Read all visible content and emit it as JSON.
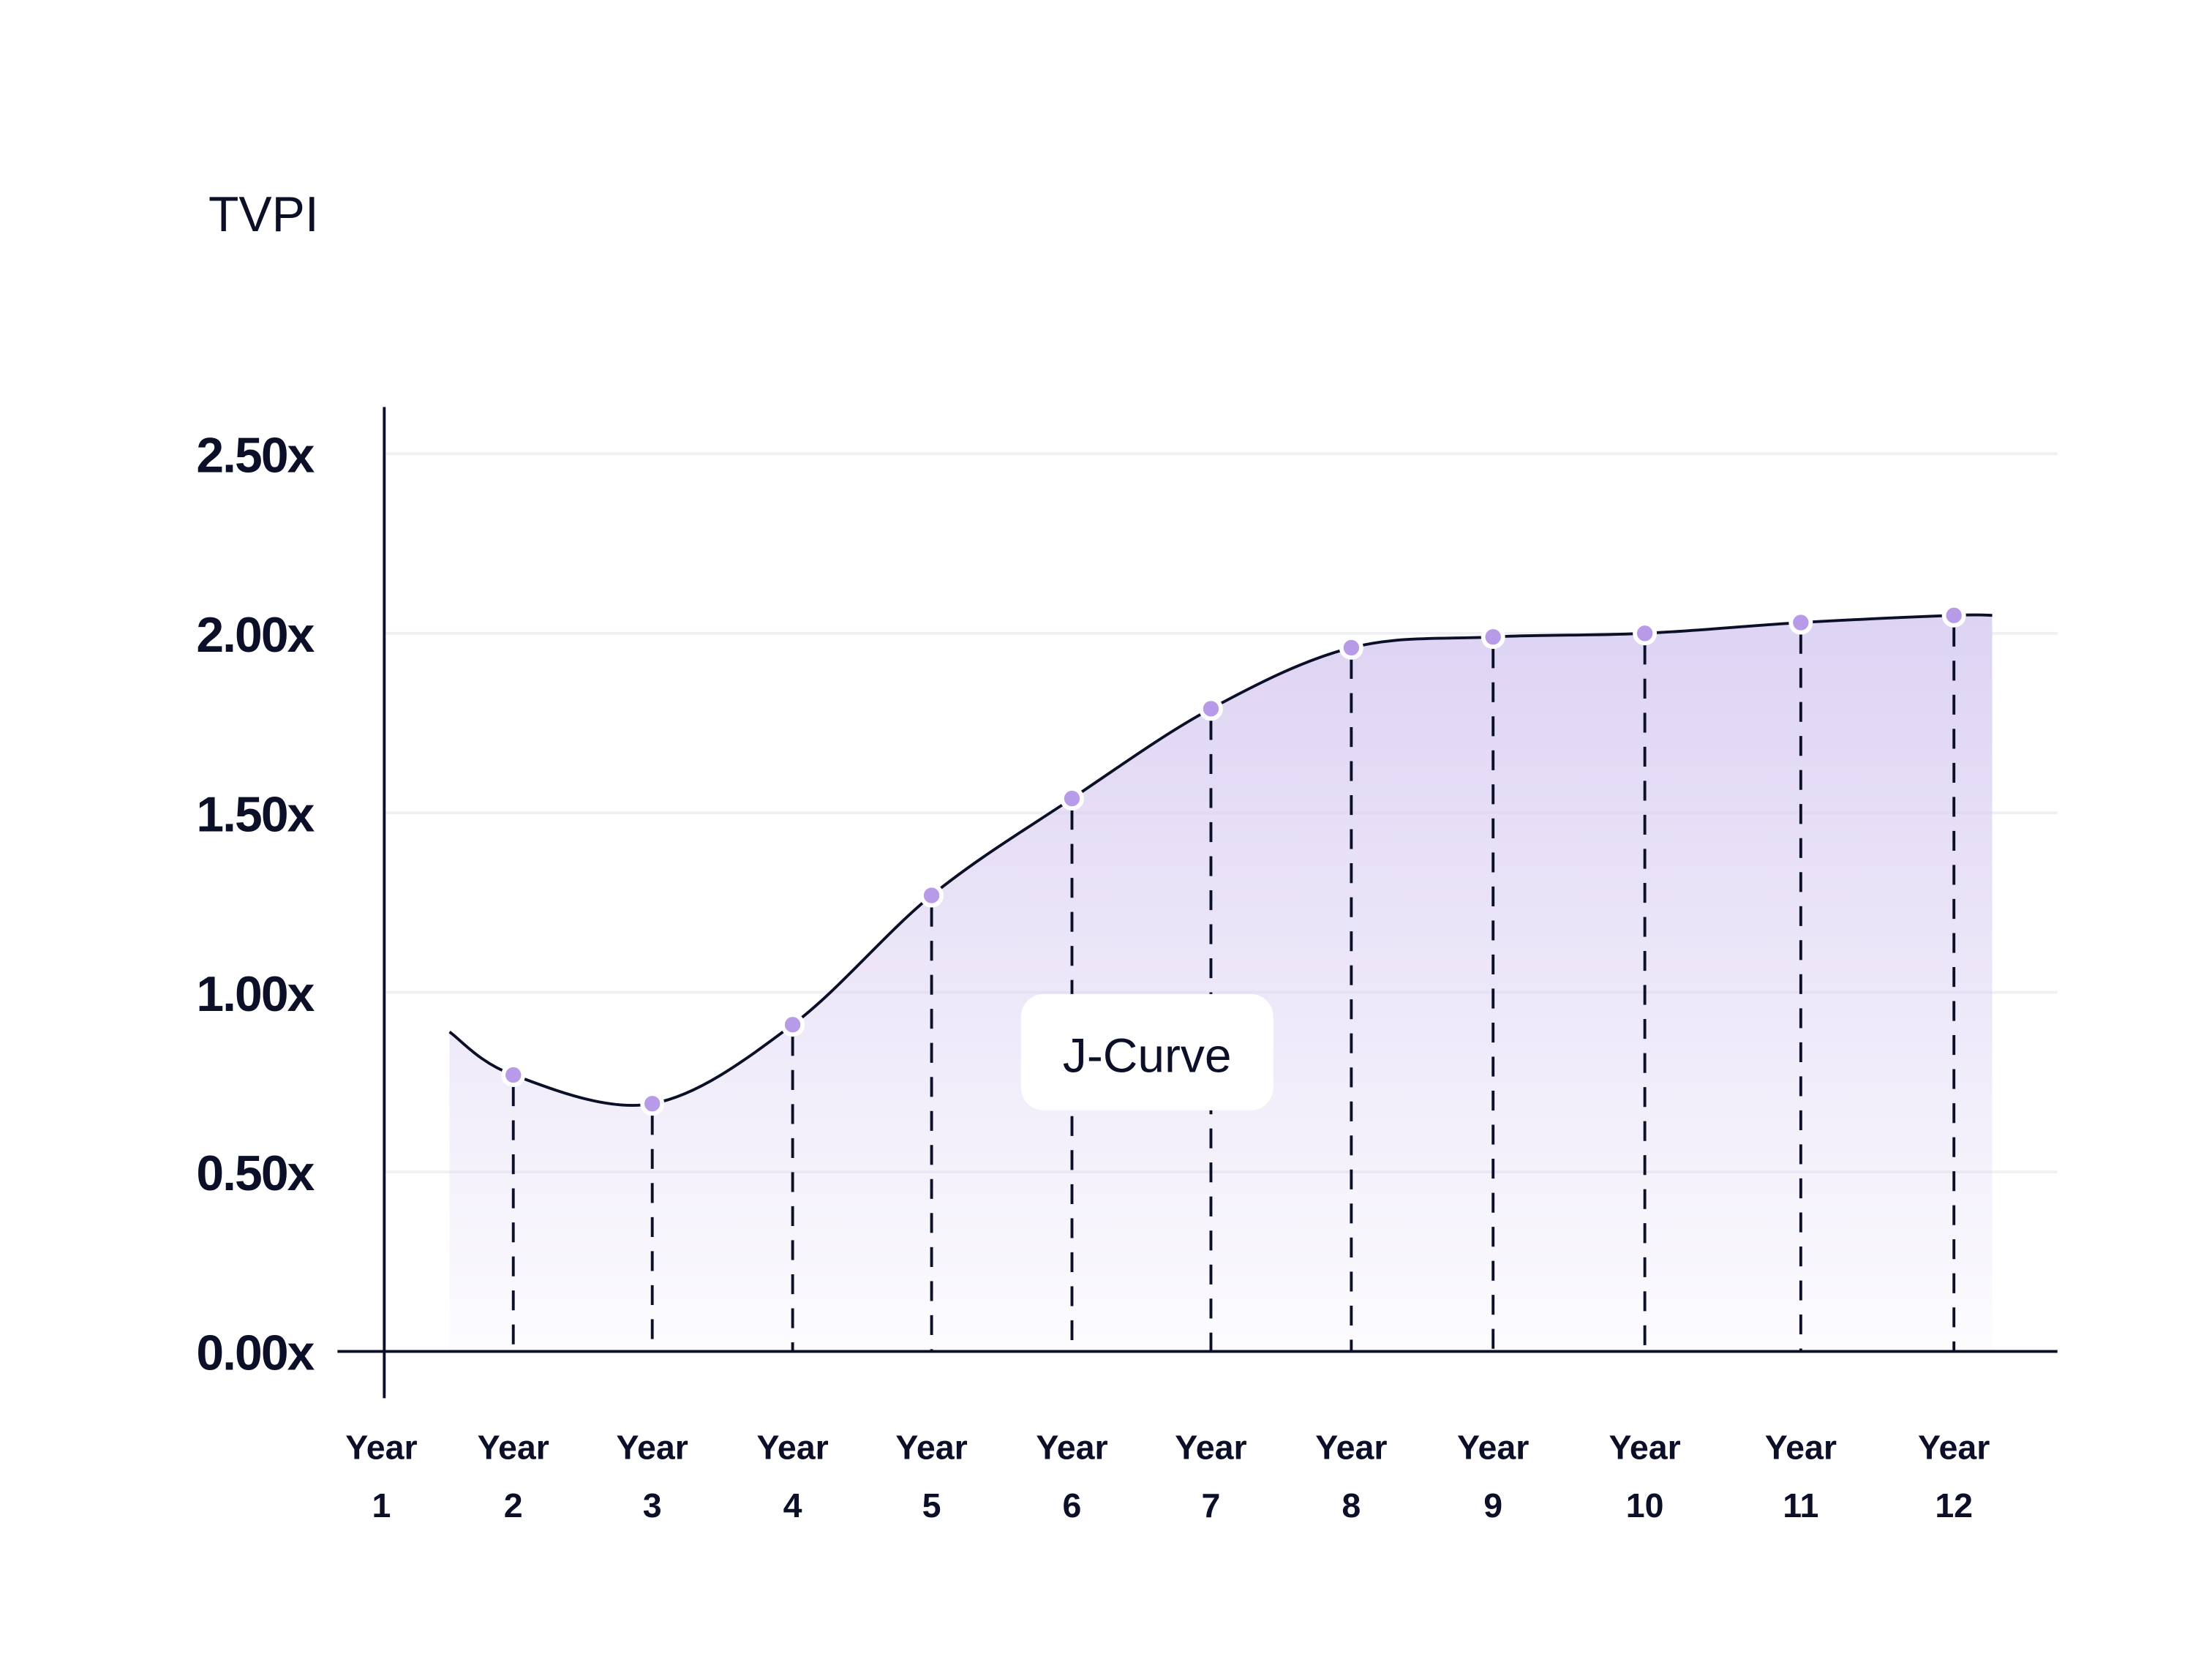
{
  "chart_data": {
    "type": "area",
    "title": "",
    "ylabel": "TVPI",
    "xlabel": "",
    "ylim": [
      0,
      2.5
    ],
    "grid": true,
    "y_ticks": [
      "0.00x",
      "0.50x",
      "1.00x",
      "1.50x",
      "2.00x",
      "2.50x"
    ],
    "y_tick_values": [
      0,
      0.5,
      1,
      1.5,
      2,
      2.5
    ],
    "categories": [
      {
        "line1": "Year",
        "line2": "1"
      },
      {
        "line1": "Year",
        "line2": "2"
      },
      {
        "line1": "Year",
        "line2": "3"
      },
      {
        "line1": "Year",
        "line2": "4"
      },
      {
        "line1": "Year",
        "line2": "5"
      },
      {
        "line1": "Year",
        "line2": "6"
      },
      {
        "line1": "Year",
        "line2": "7"
      },
      {
        "line1": "Year",
        "line2": "8"
      },
      {
        "line1": "Year",
        "line2": "9"
      },
      {
        "line1": "Year",
        "line2": "10"
      },
      {
        "line1": "Year",
        "line2": "11"
      },
      {
        "line1": "Year",
        "line2": "12"
      }
    ],
    "series": [
      {
        "name": "TVPI",
        "points": [
          {
            "year": 2,
            "value": 0.77
          },
          {
            "year": 3,
            "value": 0.69
          },
          {
            "year": 4,
            "value": 0.91
          },
          {
            "year": 5,
            "value": 1.27
          },
          {
            "year": 6,
            "value": 1.54
          },
          {
            "year": 7,
            "value": 1.79
          },
          {
            "year": 8,
            "value": 1.96
          },
          {
            "year": 9,
            "value": 1.99
          },
          {
            "year": 10,
            "value": 2.0
          },
          {
            "year": 11,
            "value": 2.03
          },
          {
            "year": 12,
            "value": 2.05
          }
        ],
        "curve_start_value": 0.89,
        "curve_end_value": 2.05
      }
    ],
    "annotation": "J-Curve",
    "colors": {
      "text": "#0b1028",
      "point": "#b79ae8",
      "fill_top": "#ddd3f3",
      "grid": "#f0eff4"
    }
  }
}
